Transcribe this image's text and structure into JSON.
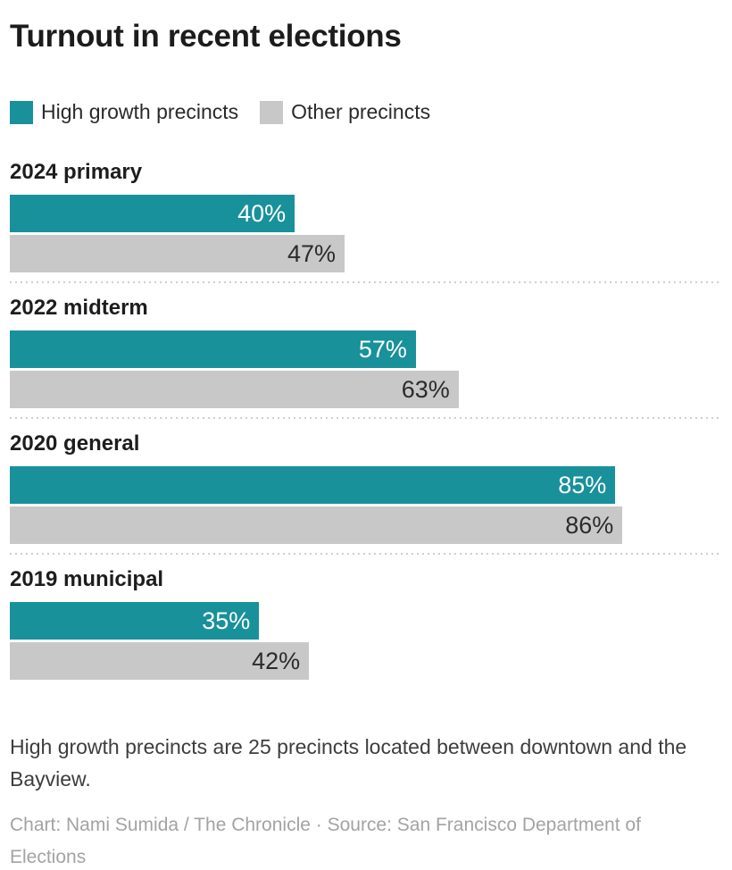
{
  "title": "Turnout in recent elections",
  "legend": [
    {
      "label": "High growth precincts",
      "color": "#18919a"
    },
    {
      "label": "Other precincts",
      "color": "#c8c8c8"
    }
  ],
  "chart_data": {
    "type": "bar",
    "orientation": "horizontal",
    "title": "Turnout in recent elections",
    "categories": [
      "2024 primary",
      "2022 midterm",
      "2020 general",
      "2019 municipal"
    ],
    "series": [
      {
        "name": "High growth precincts",
        "color": "#18919a",
        "values": [
          40,
          57,
          85,
          35
        ]
      },
      {
        "name": "Other precincts",
        "color": "#c8c8c8",
        "values": [
          47,
          63,
          86,
          42
        ]
      }
    ],
    "value_suffix": "%",
    "xlim": [
      0,
      100
    ],
    "grid": false,
    "legend_position": "top",
    "value_labels": "inside-end"
  },
  "note": "High growth precincts are 25 precincts located between downtown and the Bayview.",
  "credit": "Chart: Nami Sumida / The Chronicle · Source: San Francisco Department of Elections"
}
